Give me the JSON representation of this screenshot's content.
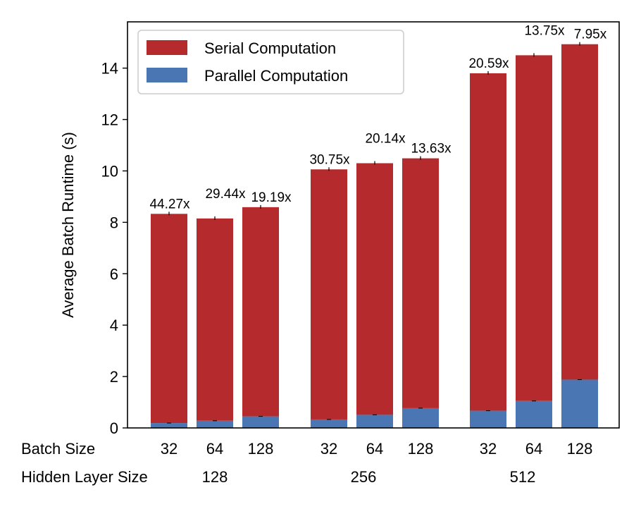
{
  "chart_data": {
    "type": "bar",
    "stacked": true,
    "ylabel": "Average Batch Runtime (s)",
    "ylim": [
      0,
      15.8
    ],
    "yticks": [
      0,
      2,
      4,
      6,
      8,
      10,
      12,
      14
    ],
    "row_labels": {
      "batch_size": "Batch Size",
      "hidden_layer_size": "Hidden Layer Size"
    },
    "categories": [
      "32",
      "64",
      "128",
      "32",
      "64",
      "128",
      "32",
      "64",
      "128"
    ],
    "groups": [
      {
        "label": "128",
        "members": [
          0,
          1,
          2
        ]
      },
      {
        "label": "256",
        "members": [
          3,
          4,
          5
        ]
      },
      {
        "label": "512",
        "members": [
          6,
          7,
          8
        ]
      }
    ],
    "series": [
      {
        "name": "Parallel Computation",
        "color": "#4a76b3",
        "values": [
          0.19,
          0.28,
          0.45,
          0.33,
          0.51,
          0.77,
          0.67,
          1.05,
          1.88
        ]
      },
      {
        "name": "Serial Computation",
        "color": "#b52a2d",
        "values": [
          8.14,
          7.87,
          8.14,
          9.73,
          9.79,
          9.72,
          13.13,
          13.45,
          13.05
        ]
      }
    ],
    "speedup_labels": [
      "44.27x",
      "29.44x",
      "19.19x",
      "30.75x",
      "20.14x",
      "13.63x",
      "20.59x",
      "13.75x",
      "7.95x"
    ],
    "legend": {
      "position": "top-left",
      "entries": [
        "Serial Computation",
        "Parallel Computation"
      ]
    }
  }
}
